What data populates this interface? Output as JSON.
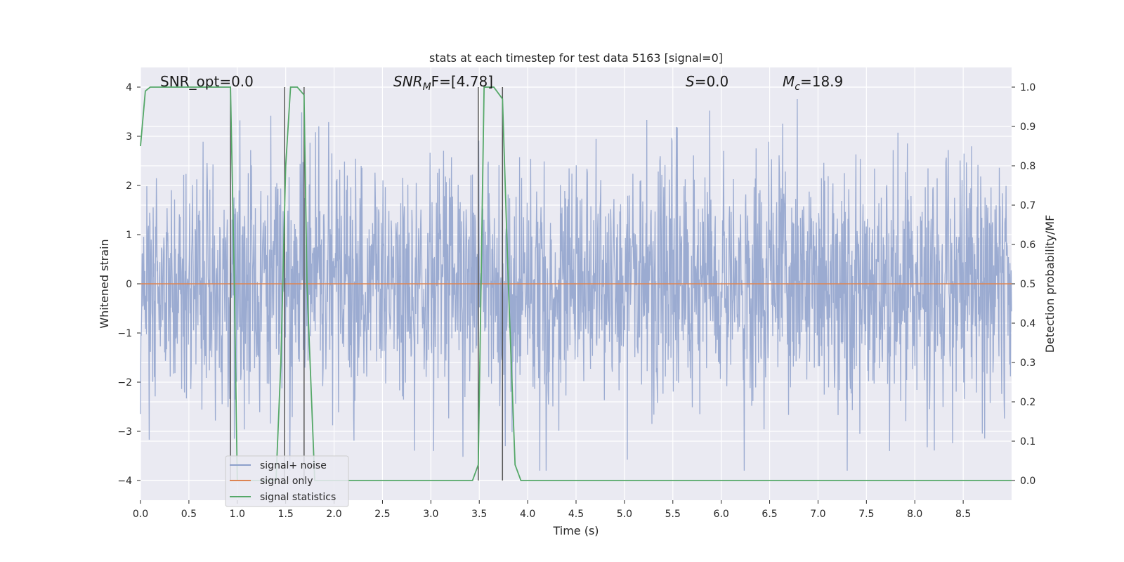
{
  "chart_data": {
    "type": "line",
    "title": "stats at each timestep for test data 5163 [signal=0]",
    "xlabel": "Time (s)",
    "ylabel": "Whitened strain",
    "ylabel_right": "Detection probability/MF",
    "xlim": [
      0,
      9.0
    ],
    "ylim": [
      -4.4,
      4.4
    ],
    "ylim_right": [
      -0.05,
      1.05
    ],
    "x_ticks": [
      "0.0",
      "0.5",
      "1.0",
      "1.5",
      "2.0",
      "2.5",
      "3.0",
      "3.5",
      "4.0",
      "4.5",
      "5.0",
      "5.5",
      "6.0",
      "6.5",
      "7.0",
      "7.5",
      "8.0",
      "8.5"
    ],
    "y_ticks": [
      "4",
      "3",
      "2",
      "1",
      "0",
      "−1",
      "−2",
      "−3",
      "−4"
    ],
    "y_ticks_right": [
      "1.0",
      "0.9",
      "0.8",
      "0.7",
      "0.6",
      "0.5",
      "0.4",
      "0.3",
      "0.2",
      "0.1",
      "0.0"
    ],
    "annotations": [
      "SNR_opt=0.0",
      "SNR",
      "M",
      "F=[4.78]",
      "S",
      "=0.0",
      "M",
      "c",
      "=18.9"
    ],
    "vertical_lines": [
      0.93,
      1.49,
      1.69,
      3.49,
      3.74
    ],
    "legend": {
      "placement": "lower-left",
      "entries": [
        "signal+ noise",
        "signal only",
        "signal statistics"
      ]
    },
    "series": [
      {
        "name": "signal+ noise",
        "axis": "left",
        "color": "#8da0cb",
        "description_values": "noise band approx ±2.5 with peaks to ±3.8",
        "amplitude": 2.4
      },
      {
        "name": "signal only",
        "axis": "left",
        "color": "#dd8452",
        "x": [
          0,
          9.0
        ],
        "y": [
          0,
          0
        ]
      },
      {
        "name": "signal statistics",
        "axis": "right",
        "color": "#55a868",
        "x": [
          0.0,
          0.05,
          0.1,
          0.2,
          0.9,
          0.93,
          0.97,
          1.0,
          1.4,
          1.45,
          1.5,
          1.55,
          1.62,
          1.69,
          1.72,
          1.8,
          3.43,
          3.49,
          3.55,
          3.65,
          3.74,
          3.8,
          3.87,
          3.93,
          9.0
        ],
        "y": [
          0.85,
          0.99,
          1.0,
          1.0,
          1.0,
          1.0,
          0.5,
          0.0,
          0.0,
          0.3,
          0.8,
          1.0,
          1.0,
          0.98,
          0.5,
          0.0,
          0.0,
          0.04,
          1.0,
          1.0,
          0.97,
          0.5,
          0.04,
          0.0,
          0.0
        ]
      }
    ],
    "grid": true,
    "colors": {
      "background": "#eaeaf2",
      "grid": "#ffffff",
      "noise": "#8da0cb",
      "signal": "#dd8452",
      "stats": "#55a868",
      "vline": "#555555"
    }
  }
}
